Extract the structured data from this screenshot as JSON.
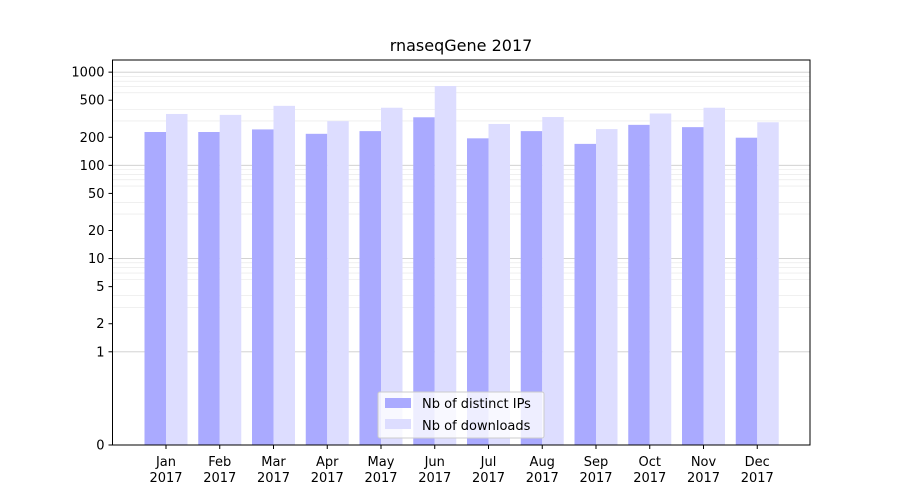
{
  "chart_data": {
    "type": "bar",
    "title": "rnaseqGene 2017",
    "xlabel": "",
    "ylabel": "",
    "y_scale": "symlog",
    "ylim": [
      0,
      1350
    ],
    "y_ticks": [
      0,
      1,
      2,
      5,
      10,
      20,
      50,
      100,
      200,
      500,
      1000
    ],
    "y_tick_labels": [
      "0",
      "1",
      "2",
      "5",
      "10",
      "20",
      "50",
      "100",
      "200",
      "500",
      "1000"
    ],
    "categories": [
      [
        "Jan",
        "2017"
      ],
      [
        "Feb",
        "2017"
      ],
      [
        "Mar",
        "2017"
      ],
      [
        "Apr",
        "2017"
      ],
      [
        "May",
        "2017"
      ],
      [
        "Jun",
        "2017"
      ],
      [
        "Jul",
        "2017"
      ],
      [
        "Aug",
        "2017"
      ],
      [
        "Sep",
        "2017"
      ],
      [
        "Oct",
        "2017"
      ],
      [
        "Nov",
        "2017"
      ],
      [
        "Dec",
        "2017"
      ]
    ],
    "series": [
      {
        "name": "Nb of distinct IPs",
        "color": "#aaaaff",
        "values": [
          228,
          228,
          243,
          218,
          233,
          328,
          195,
          233,
          170,
          272,
          257,
          198
        ]
      },
      {
        "name": "Nb of downloads",
        "color": "#ddddff",
        "values": [
          356,
          348,
          435,
          298,
          415,
          710,
          278,
          330,
          245,
          360,
          415,
          290
        ]
      }
    ],
    "grid": true,
    "legend_position": "lower-center"
  }
}
